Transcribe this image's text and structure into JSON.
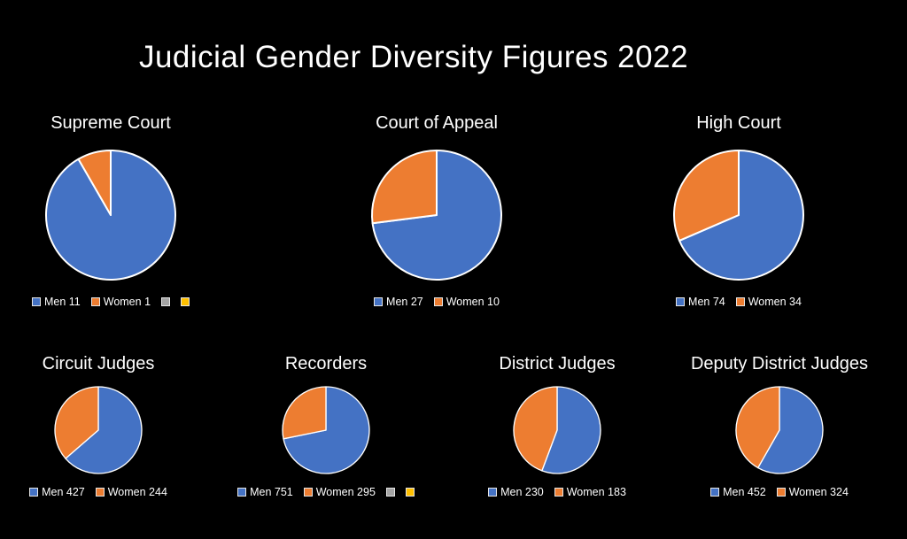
{
  "title": "Judicial Gender Diversity Figures 2022",
  "colors": {
    "men": "#4472C4",
    "women": "#ED7D31",
    "slice_border": "#FFFFFF",
    "background": "#000000",
    "text": "#FFFFFF",
    "unused_series_gray": "#A5A5A5",
    "unused_series_yellow": "#FFC000"
  },
  "chart_data": [
    {
      "type": "pie",
      "title": "Supreme Court",
      "categories": [
        "Men",
        "Women"
      ],
      "values": [
        11,
        1
      ],
      "legend_labels": [
        "Men 11",
        "Women 1"
      ],
      "extra_swatches": [
        "#A5A5A5",
        "#FFC000"
      ],
      "start_angle_deg": 0,
      "direction": "clockwise",
      "legend_position": "bottom"
    },
    {
      "type": "pie",
      "title": "Court of Appeal",
      "categories": [
        "Men",
        "Women"
      ],
      "values": [
        27,
        10
      ],
      "legend_labels": [
        "Men 27",
        "Women 10"
      ],
      "extra_swatches": [],
      "start_angle_deg": 0,
      "direction": "clockwise",
      "legend_position": "bottom"
    },
    {
      "type": "pie",
      "title": "High Court",
      "categories": [
        "Men",
        "Women"
      ],
      "values": [
        74,
        34
      ],
      "legend_labels": [
        "Men 74",
        "Women 34"
      ],
      "extra_swatches": [],
      "start_angle_deg": 0,
      "direction": "clockwise",
      "legend_position": "bottom"
    },
    {
      "type": "pie",
      "title": "Circuit Judges",
      "categories": [
        "Men",
        "Women"
      ],
      "values": [
        427,
        244
      ],
      "legend_labels": [
        "Men 427",
        "Women 244"
      ],
      "extra_swatches": [],
      "start_angle_deg": 0,
      "direction": "clockwise",
      "legend_position": "bottom"
    },
    {
      "type": "pie",
      "title": "Recorders",
      "categories": [
        "Men",
        "Women"
      ],
      "values": [
        751,
        295
      ],
      "legend_labels": [
        "Men 751",
        "Women 295"
      ],
      "extra_swatches": [
        "#A5A5A5",
        "#FFC000"
      ],
      "start_angle_deg": 0,
      "direction": "clockwise",
      "legend_position": "bottom"
    },
    {
      "type": "pie",
      "title": "District Judges",
      "categories": [
        "Men",
        "Women"
      ],
      "values": [
        230,
        183
      ],
      "legend_labels": [
        "Men 230",
        "Women 183"
      ],
      "extra_swatches": [],
      "start_angle_deg": 0,
      "direction": "clockwise",
      "legend_position": "bottom"
    },
    {
      "type": "pie",
      "title": "Deputy District Judges",
      "categories": [
        "Men",
        "Women"
      ],
      "values": [
        452,
        324
      ],
      "legend_labels": [
        "Men 452",
        "Women 324"
      ],
      "extra_swatches": [],
      "start_angle_deg": 0,
      "direction": "clockwise",
      "legend_position": "bottom"
    }
  ]
}
